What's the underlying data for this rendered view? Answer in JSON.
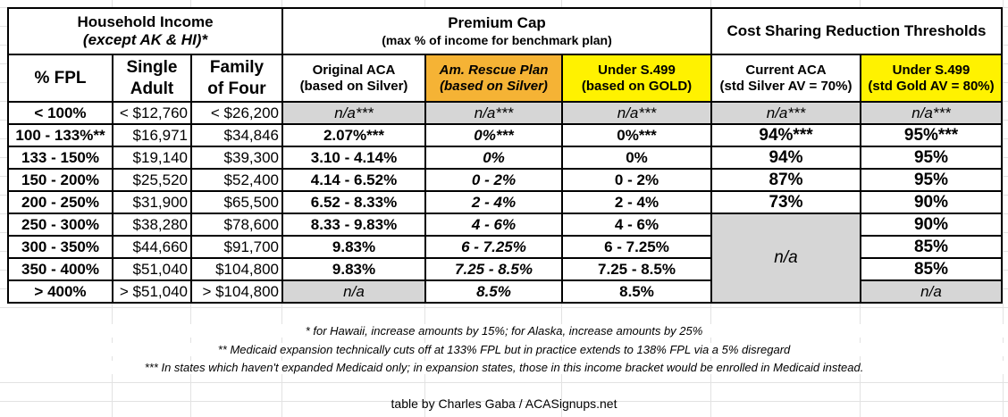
{
  "header": {
    "household_income": "Household Income",
    "household_income_sub": "(except AK & HI)*",
    "premium_cap": "Premium Cap",
    "premium_cap_sub": "(max % of income for benchmark plan)",
    "csr": "Cost Sharing Reduction Thresholds",
    "columns": [
      {
        "line1": "% FPL",
        "line2": ""
      },
      {
        "line1": "Single",
        "line2": "Adult"
      },
      {
        "line1": "Family",
        "line2": "of Four"
      },
      {
        "line1": "Original ACA",
        "line2": "(based on Silver)"
      },
      {
        "line1": "Am. Rescue Plan",
        "line2": "(based on Silver)"
      },
      {
        "line1": "Under S.499",
        "line2": "(based on GOLD)"
      },
      {
        "line1": "Current ACA",
        "line2": "(std Silver AV = 70%)"
      },
      {
        "line1": "Under S.499",
        "line2": "(std Gold AV = 80%)"
      }
    ]
  },
  "colors": {
    "orange": "#f5b335",
    "yellow": "#fff200",
    "gray": "#d6d6d6"
  },
  "rows": [
    [
      "< 100%",
      "< $12,760",
      "< $26,200",
      "n/a***",
      "n/a***",
      "n/a***",
      "n/a***",
      "n/a***"
    ],
    [
      "100 - 133%**",
      "$16,971",
      "$34,846",
      "2.07%***",
      "0%***",
      "0%***",
      "94%***",
      "95%***"
    ],
    [
      "133 - 150%",
      "$19,140",
      "$39,300",
      "3.10 - 4.14%",
      "0%",
      "0%",
      "94%",
      "95%"
    ],
    [
      "150 - 200%",
      "$25,520",
      "$52,400",
      "4.14 - 6.52%",
      "0 - 2%",
      "0 - 2%",
      "87%",
      "95%"
    ],
    [
      "200 - 250%",
      "$31,900",
      "$65,500",
      "6.52 - 8.33%",
      "2 - 4%",
      "2 - 4%",
      "73%",
      "90%"
    ],
    [
      "250 - 300%",
      "$38,280",
      "$78,600",
      "8.33 - 9.83%",
      "4 - 6%",
      "4 - 6%",
      "n/a",
      "90%"
    ],
    [
      "300 - 350%",
      "$44,660",
      "$91,700",
      "9.83%",
      "6 - 7.25%",
      "6 - 7.25%",
      "",
      "85%"
    ],
    [
      "350 - 400%",
      "$51,040",
      "$104,800",
      "9.83%",
      "7.25 - 8.5%",
      "7.25 - 8.5%",
      "",
      "85%"
    ],
    [
      "> 400%",
      "> $51,040",
      "> $104,800",
      "n/a",
      "8.5%",
      "8.5%",
      "",
      "n/a"
    ]
  ],
  "notes": [
    "* for Hawaii, increase amounts by 15%; for Alaska, increase amounts by 25%",
    "** Medicaid expansion technically cuts off at 133% FPL but in practice extends to 138% FPL via a 5% disregard",
    "*** In states which haven't expanded Medicaid only; in expansion states, those in this income bracket would be enrolled in Medicaid instead."
  ],
  "credit": "table by Charles Gaba / ACASignups.net"
}
